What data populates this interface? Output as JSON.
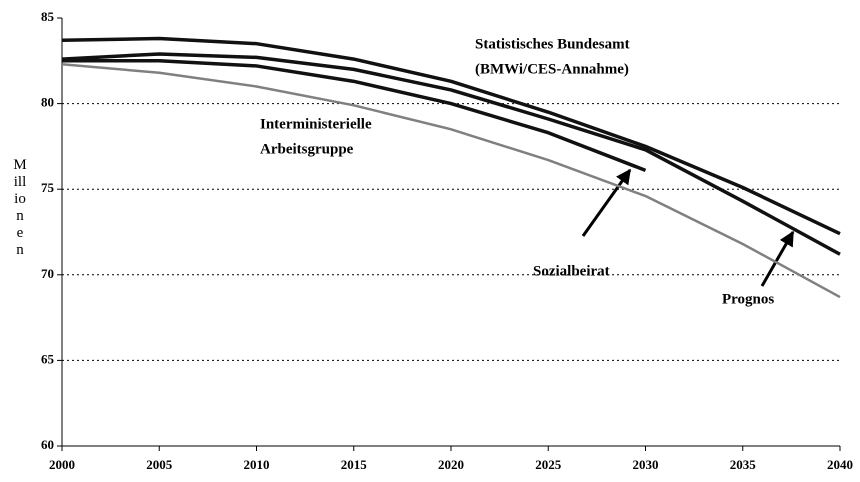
{
  "chart_data": {
    "type": "line",
    "y_label": "Millionen",
    "x": [
      2000,
      2005,
      2010,
      2015,
      2020,
      2025,
      2030,
      2035,
      2040
    ],
    "xlim": [
      2000,
      2040
    ],
    "xticks": [
      2000,
      2005,
      2010,
      2015,
      2020,
      2025,
      2030,
      2035,
      2040
    ],
    "ylim": [
      60,
      85
    ],
    "yticks": [
      60,
      65,
      70,
      75,
      80,
      85
    ],
    "grid": true,
    "series": [
      {
        "color": "#111111",
        "values": [
          83.7,
          83.8,
          83.5,
          82.6,
          81.3,
          79.5,
          77.5,
          75.1,
          72.4
        ]
      },
      {
        "color": "#111111",
        "values": [
          82.6,
          82.9,
          82.7,
          82.0,
          80.8,
          79.1,
          77.3,
          74.3,
          71.2
        ]
      },
      {
        "color": "#111111",
        "values": [
          82.5,
          82.5,
          82.2,
          81.3,
          80.0,
          78.3,
          76.1,
          null,
          null
        ]
      },
      {
        "color": "#808080",
        "values": [
          82.3,
          81.8,
          81.0,
          79.9,
          78.5,
          76.7,
          74.6,
          71.8,
          68.7
        ]
      }
    ],
    "annotations": [
      {
        "lines": [
          "Statistisches Bundesamt",
          "(BMWi/CES-Annahme)"
        ]
      },
      {
        "lines": [
          "Interministerielle",
          "Arbeitsgruppe"
        ]
      },
      {
        "lines": [
          "Sozialbeirat"
        ]
      },
      {
        "lines": [
          "Prognos"
        ]
      }
    ]
  }
}
